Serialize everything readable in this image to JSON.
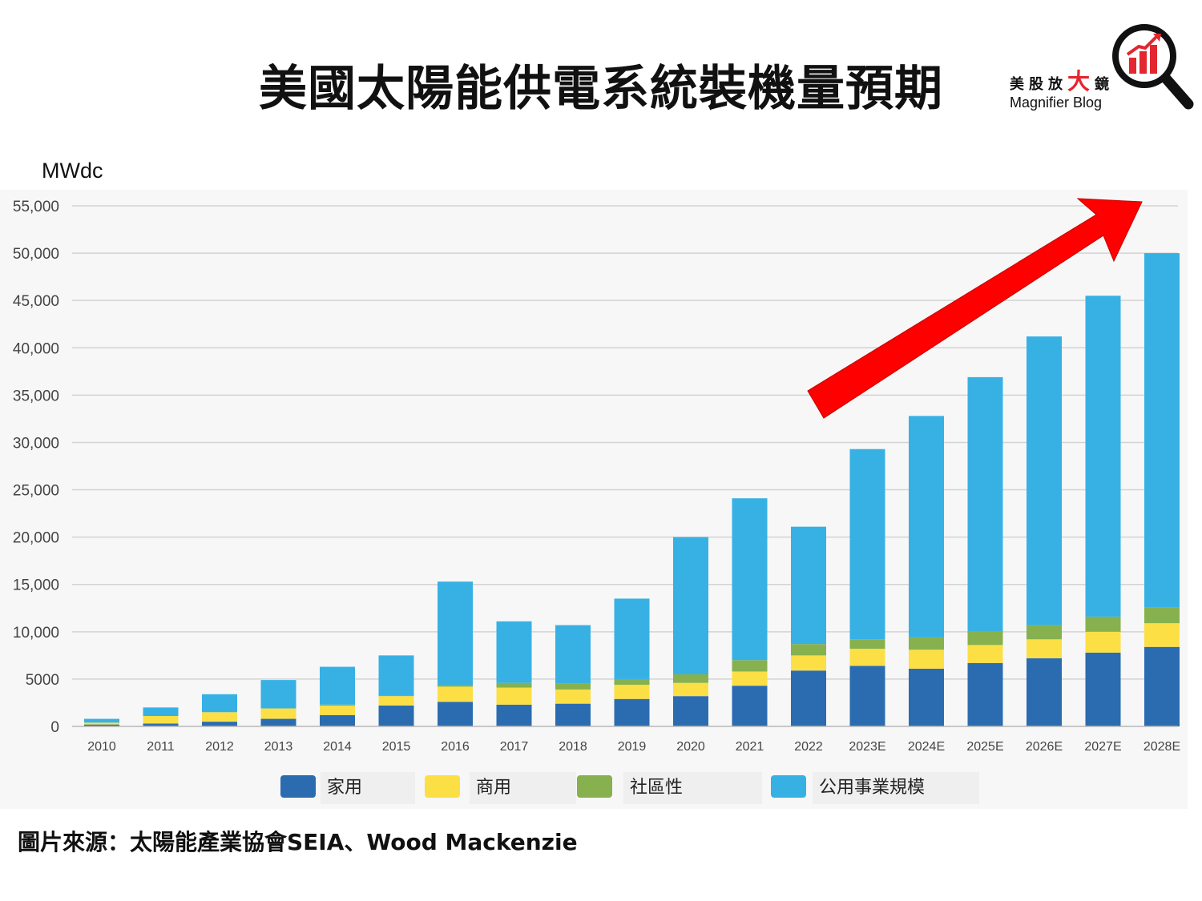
{
  "title": "美國太陽能供電系統裝機量預期",
  "logo": {
    "cn_prefix": "美股放",
    "cn_big": "大",
    "cn_suffix": "鏡",
    "en": "Magnifier Blog"
  },
  "source": "圖片來源：太陽能產業協會SEIA、Wood Mackenzie",
  "colors": {
    "residential": "#2b6cb0",
    "commercial": "#fcdf45",
    "community": "#86b14e",
    "utility": "#37b1e4",
    "arrow": "#ff0000"
  },
  "chart_data": {
    "type": "bar",
    "stacked": true,
    "ylabel": "MWdc",
    "ylim": [
      0,
      55000
    ],
    "yticks": [
      "0",
      "5000",
      "10,000",
      "15,000",
      "20,000",
      "25,000",
      "30,000",
      "35,000",
      "40,000",
      "45,000",
      "50,000",
      "55,000"
    ],
    "categories": [
      "2010",
      "2011",
      "2012",
      "2013",
      "2014",
      "2015",
      "2016",
      "2017",
      "2018",
      "2019",
      "2020",
      "2021",
      "2022",
      "2023E",
      "2024E",
      "2025E",
      "2026E",
      "2027E",
      "2028E"
    ],
    "series": [
      {
        "name": "家用",
        "key": "residential",
        "values": [
          200,
          300,
          500,
          800,
          1200,
          2200,
          2600,
          2300,
          2400,
          2900,
          3200,
          4300,
          5900,
          6400,
          6100,
          6700,
          7200,
          7800,
          8400
        ]
      },
      {
        "name": "商用",
        "key": "commercial",
        "values": [
          200,
          800,
          1000,
          1100,
          1000,
          1000,
          1600,
          1800,
          1500,
          1500,
          1400,
          1500,
          1600,
          1800,
          2000,
          1900,
          2000,
          2200,
          2500
        ]
      },
      {
        "name": "社區性",
        "key": "community",
        "values": [
          0,
          0,
          0,
          0,
          100,
          100,
          200,
          500,
          600,
          600,
          900,
          1200,
          1200,
          1000,
          1300,
          1400,
          1500,
          1600,
          1700
        ]
      },
      {
        "name": "公用事業規模",
        "key": "utility",
        "values": [
          400,
          900,
          1900,
          3000,
          4000,
          4200,
          10900,
          6500,
          6200,
          8500,
          14500,
          17100,
          12400,
          20100,
          23400,
          26900,
          30500,
          33900,
          37400
        ]
      }
    ],
    "legend_position": "bottom",
    "annotation": "upward trend arrow (red)"
  }
}
